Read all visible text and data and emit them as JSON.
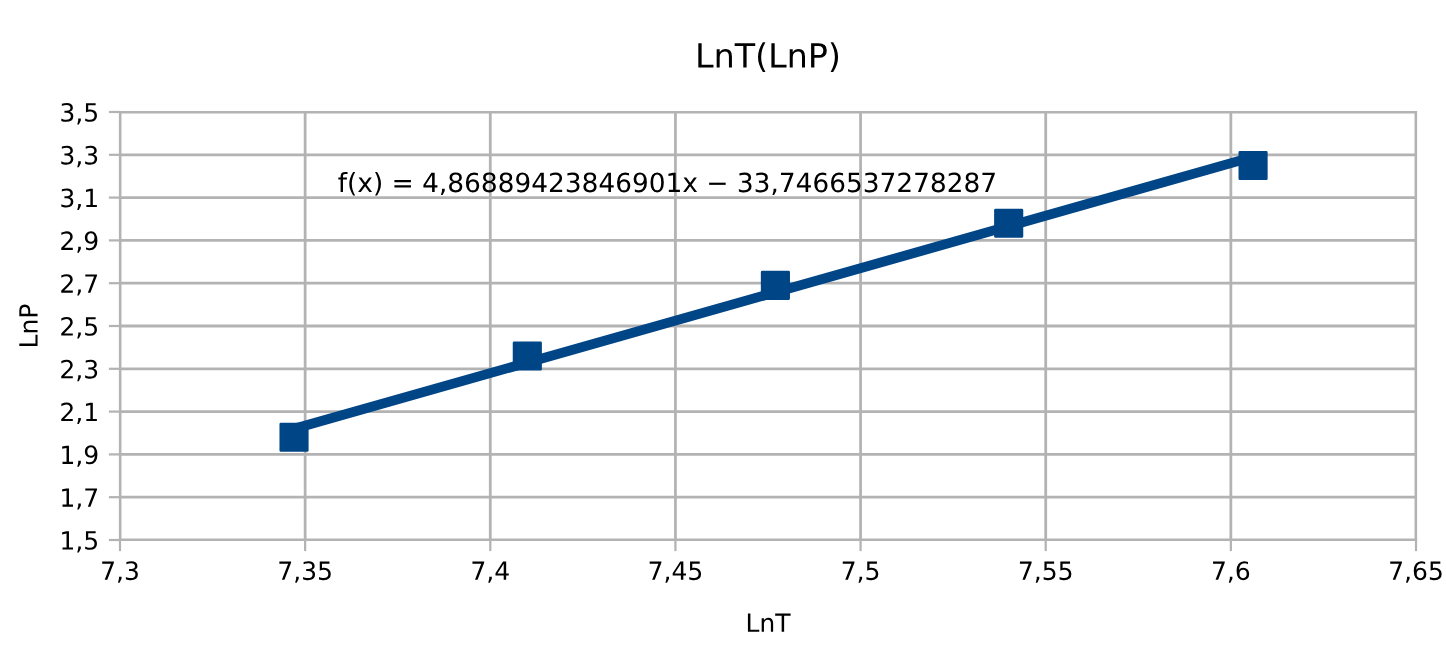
{
  "chart_data": {
    "type": "scatter",
    "title": "LnT(LnP)",
    "xlabel": "LnT",
    "ylabel": "LnP",
    "series": [
      {
        "color": "#004586",
        "marker": "square",
        "x": [
          7.347,
          7.41,
          7.477,
          7.54,
          7.606
        ],
        "values": [
          1.98,
          2.36,
          2.69,
          2.98,
          3.25
        ]
      },
      {
        "type": "line",
        "color": "#004586",
        "marker": "none",
        "line_style": "solid",
        "x": [
          7.347,
          7.606
        ],
        "values": [
          2.02,
          3.29
        ]
      }
    ],
    "annotations": [
      "f(x) = 4,86889423846901x − 33,7466537278287"
    ],
    "xlim": [
      7.3,
      7.65
    ],
    "xticks": [
      {
        "value": 7.3,
        "label": "7,3"
      },
      {
        "value": 7.35,
        "label": "7,35"
      },
      {
        "value": 7.4,
        "label": "7,4"
      },
      {
        "value": 7.45,
        "label": "7,45"
      },
      {
        "value": 7.5,
        "label": "7,5"
      },
      {
        "value": 7.55,
        "label": "7,55"
      },
      {
        "value": 7.6,
        "label": "7,6"
      },
      {
        "value": 7.65,
        "label": "7,65"
      }
    ],
    "ylim": [
      1.5,
      3.5
    ],
    "yticks": [
      {
        "value": 1.5,
        "label": "1,5"
      },
      {
        "value": 1.7,
        "label": "1,7"
      },
      {
        "value": 1.9,
        "label": "1,9"
      },
      {
        "value": 2.1,
        "label": "2,1"
      },
      {
        "value": 2.3,
        "label": "2,3"
      },
      {
        "value": 2.5,
        "label": "2,5"
      },
      {
        "value": 2.7,
        "label": "2,7"
      },
      {
        "value": 2.9,
        "label": "2,9"
      },
      {
        "value": 3.1,
        "label": "3,1"
      },
      {
        "value": 3.3,
        "label": "3,3"
      },
      {
        "value": 3.5,
        "label": "3,5"
      }
    ],
    "grid": true,
    "legend": false
  }
}
